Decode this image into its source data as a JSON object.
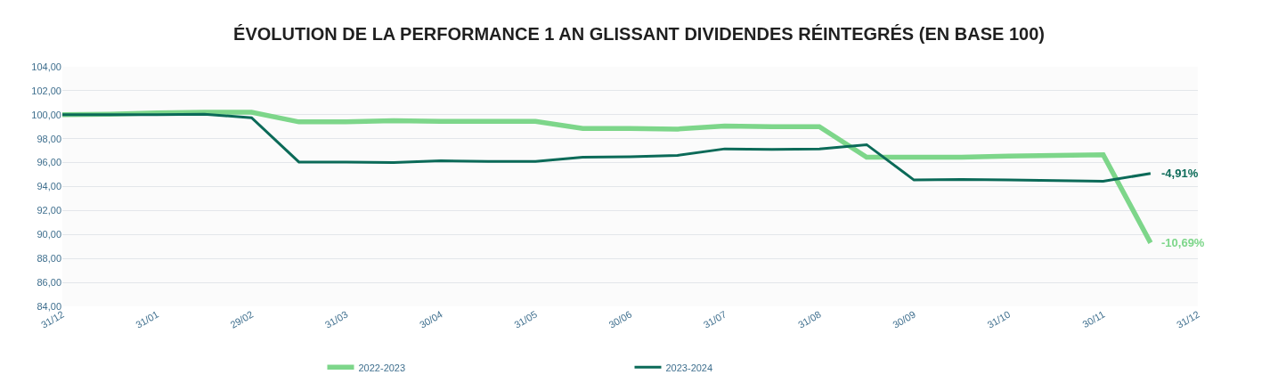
{
  "chart_data": {
    "type": "line",
    "title": "ÉVOLUTION DE LA PERFORMANCE 1 AN GLISSANT DIVIDENDES RÉINTEGRÉS (EN BASE 100)",
    "categories": [
      "31/12",
      null,
      "31/01",
      null,
      "29/02",
      null,
      "31/03",
      null,
      "30/04",
      null,
      "31/05",
      null,
      "30/06",
      null,
      "31/07",
      null,
      "31/08",
      null,
      "30/09",
      null,
      "31/10",
      null,
      "30/11",
      null,
      "31/12"
    ],
    "series": [
      {
        "name": "2022-2023",
        "color": "#7dd68a",
        "values": [
          100,
          100.05,
          100.15,
          100.2,
          100.2,
          99.4,
          99.4,
          99.5,
          99.45,
          99.45,
          99.45,
          98.85,
          98.85,
          98.8,
          99.05,
          99.0,
          99.0,
          96.45,
          96.45,
          96.45,
          96.55,
          96.6,
          96.65,
          89.31,
          null
        ]
      },
      {
        "name": "2023-2024",
        "color": "#0b6a58",
        "values": [
          100,
          100,
          100,
          100.05,
          99.75,
          96.05,
          96.05,
          96.0,
          96.15,
          96.1,
          96.1,
          96.45,
          96.5,
          96.6,
          97.15,
          97.1,
          97.15,
          97.5,
          94.55,
          94.6,
          94.55,
          94.5,
          94.45,
          95.09,
          null
        ]
      }
    ],
    "annotations": [
      "-10,69%",
      "-4,91%"
    ],
    "ylim": [
      84,
      104
    ],
    "yticks": [
      {
        "value": 84,
        "label": "84,00"
      },
      {
        "value": 86,
        "label": "86,00"
      },
      {
        "value": 88,
        "label": "88,00"
      },
      {
        "value": 90,
        "label": "90,00"
      },
      {
        "value": 92,
        "label": "92,00"
      },
      {
        "value": 94,
        "label": "94,00"
      },
      {
        "value": 96,
        "label": "96,00"
      },
      {
        "value": 98,
        "label": "98,00"
      },
      {
        "value": 100,
        "label": "100,00"
      },
      {
        "value": 102,
        "label": "102,00"
      },
      {
        "value": 104,
        "label": "104,00"
      }
    ],
    "grid": "y",
    "legend": "bottom",
    "marker": "none",
    "line_style": "solid"
  }
}
